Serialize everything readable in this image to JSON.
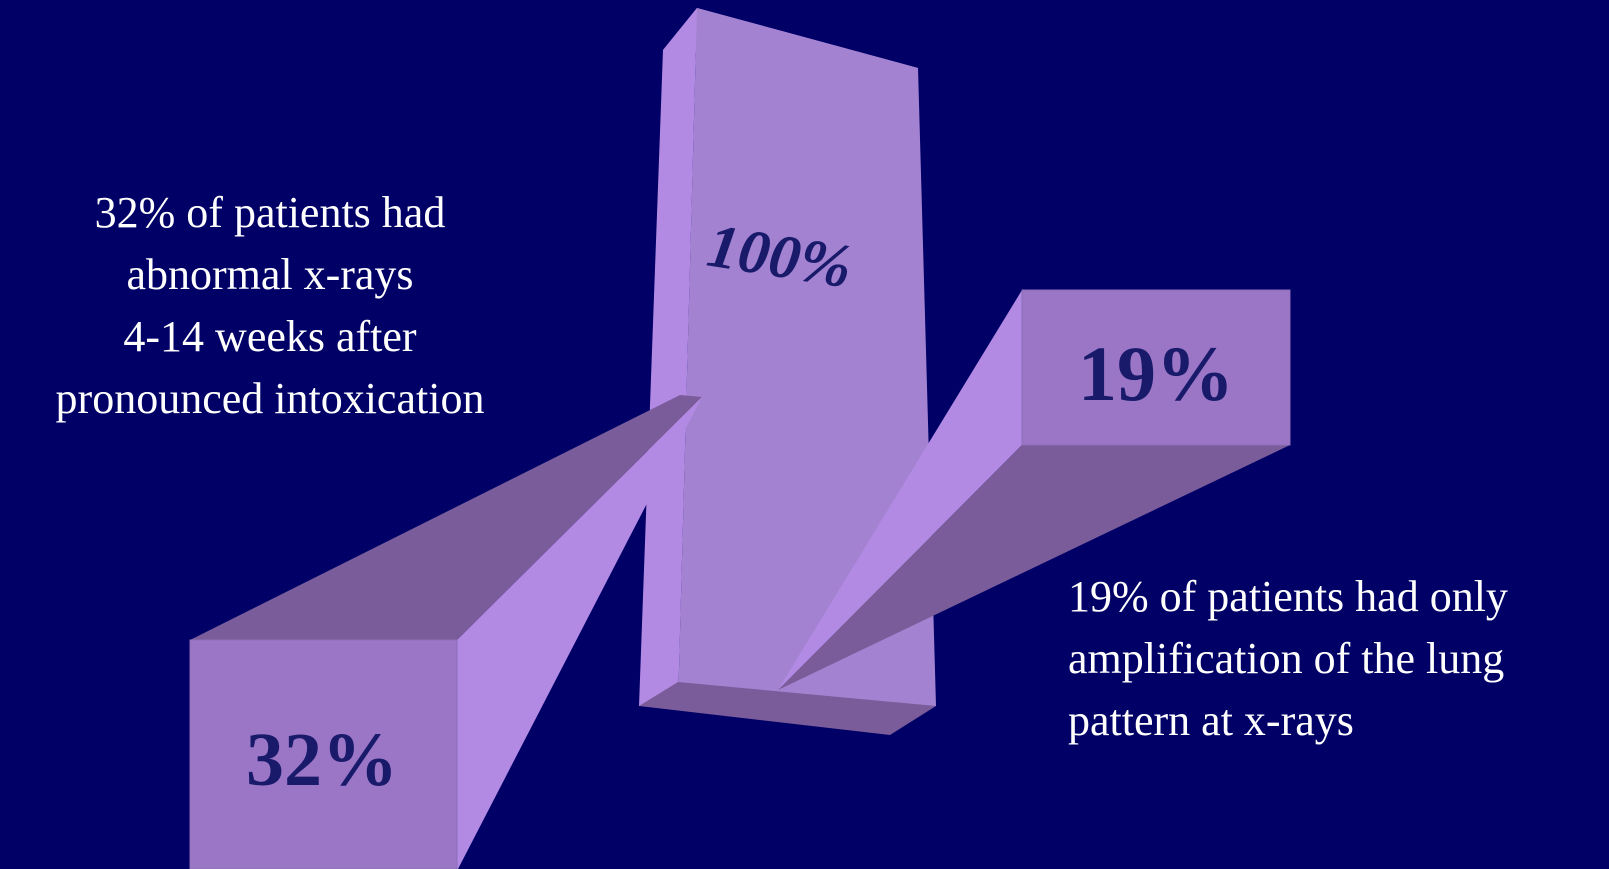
{
  "left_caption": {
    "lines": [
      "32%  of patients had",
      "abnormal x-rays",
      "4-14 weeks after",
      "pronounced intoxication"
    ]
  },
  "right_caption": {
    "lines": [
      "19% of patients had only",
      "amplification of the lung",
      "pattern at x-rays"
    ]
  },
  "blocks": {
    "total": {
      "label": "100%",
      "value": 100
    },
    "abnormal": {
      "label": "32%",
      "value": 32
    },
    "amplification": {
      "label": "19%",
      "value": 19
    }
  },
  "colors": {
    "background": "#000066",
    "block_light": "#B38AE3",
    "block_main": "#A383D1",
    "block_dark": "#7A5C9A",
    "label_text": "#1A1A6B",
    "caption_text": "#FFFFFF"
  }
}
